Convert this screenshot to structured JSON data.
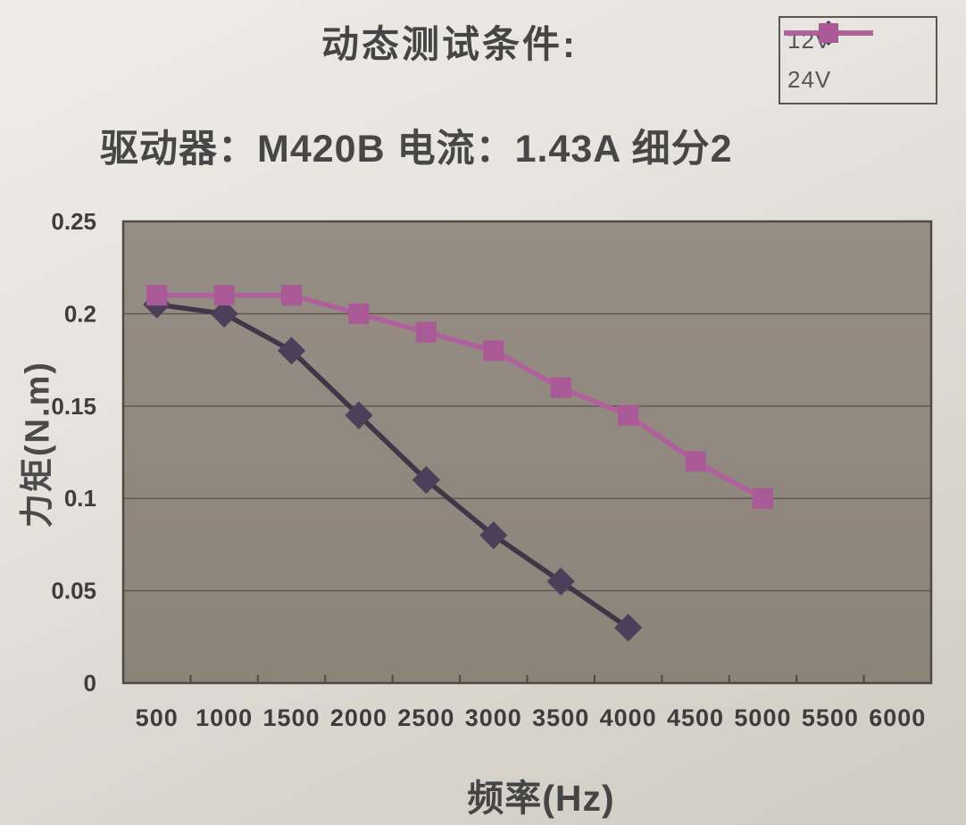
{
  "header": {
    "title": "动态测试条件:",
    "subtitle": "驱动器：M420B  电流：1.43A  细分2"
  },
  "chart_data": {
    "type": "line",
    "title": "动态测试条件:",
    "subtitle": "驱动器：M420B 电流：1.43A 细分2",
    "xlabel": "频率(Hz)",
    "ylabel": "力矩(N.m)",
    "categories": [
      500,
      1000,
      1500,
      2000,
      2500,
      3000,
      3500,
      4000,
      4500,
      5000,
      5500,
      6000
    ],
    "x_tick_labels": [
      "500",
      "1000",
      "1500",
      "2000",
      "2500",
      "3000",
      "3500",
      "4000",
      "4500",
      "5000",
      "5500",
      "6000"
    ],
    "ylim": [
      0,
      0.25
    ],
    "y_tick_values": [
      0,
      0.05,
      0.1,
      0.15,
      0.2,
      0.25
    ],
    "y_tick_labels": [
      "0",
      "0.05",
      "0.1",
      "0.15",
      "0.2",
      "0.25"
    ],
    "grid": true,
    "legend_position": "top-right",
    "colors": {
      "plot_bg": "#8c8379",
      "plot_bg_top": "#968d85",
      "plot_border": "#4e4942",
      "gridline": "#57514a"
    },
    "series": [
      {
        "name": "12V",
        "marker": "diamond",
        "line_color": "#3f3647",
        "marker_color": "#4d3f5a",
        "values": [
          0.205,
          0.2,
          0.18,
          0.145,
          0.11,
          0.08,
          0.055,
          0.03
        ]
      },
      {
        "name": "24V",
        "marker": "square",
        "line_color": "#b0609c",
        "marker_color": "#a95995",
        "values": [
          0.21,
          0.21,
          0.21,
          0.2,
          0.19,
          0.18,
          0.16,
          0.145,
          0.12,
          0.1
        ]
      }
    ]
  }
}
